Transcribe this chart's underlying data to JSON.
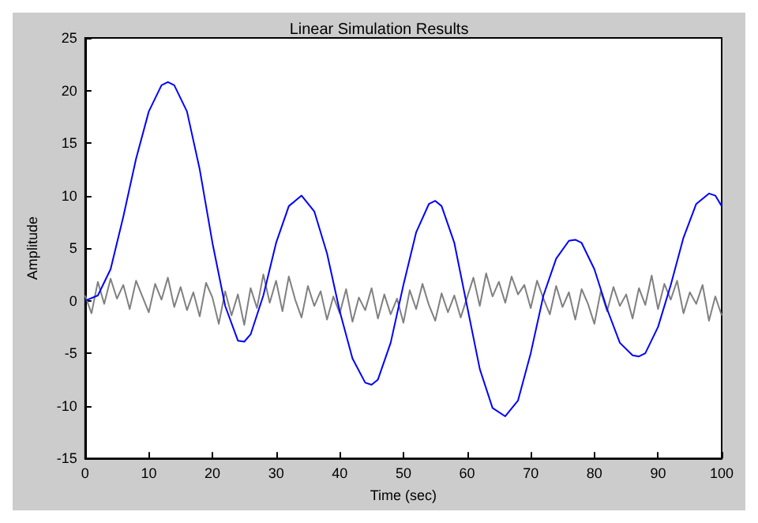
{
  "chart_data": {
    "type": "line",
    "title": "Linear Simulation Results",
    "xlabel": "Time (sec)",
    "ylabel": "Amplitude",
    "xlim": [
      0,
      100
    ],
    "xticks": [
      0,
      10,
      20,
      30,
      40,
      50,
      60,
      70,
      80,
      90,
      100
    ],
    "ylim": [
      -15,
      25
    ],
    "yticks": [
      -15,
      -10,
      -5,
      0,
      5,
      10,
      15,
      20,
      25
    ],
    "grid": false,
    "marker": "none",
    "line_style": "solid",
    "series": [
      {
        "color": "#808080",
        "x": [
          0,
          1,
          2,
          3,
          4,
          5,
          6,
          7,
          8,
          9,
          10,
          11,
          12,
          13,
          14,
          15,
          16,
          17,
          18,
          19,
          20,
          21,
          22,
          23,
          24,
          25,
          26,
          27,
          28,
          29,
          30,
          31,
          32,
          33,
          34,
          35,
          36,
          37,
          38,
          39,
          40,
          41,
          42,
          43,
          44,
          45,
          46,
          47,
          48,
          49,
          50,
          51,
          52,
          53,
          54,
          55,
          56,
          57,
          58,
          59,
          60,
          61,
          62,
          63,
          64,
          65,
          66,
          67,
          68,
          69,
          70,
          71,
          72,
          73,
          74,
          75,
          76,
          77,
          78,
          79,
          80,
          81,
          82,
          83,
          84,
          85,
          86,
          87,
          88,
          89,
          90,
          91,
          92,
          93,
          94,
          95,
          96,
          97,
          98,
          99,
          100
        ],
        "values": [
          0.5,
          -1.2,
          1.8,
          -0.3,
          2.1,
          0.2,
          1.5,
          -0.8,
          1.9,
          0.4,
          -1.1,
          1.6,
          0.1,
          2.2,
          -0.6,
          1.3,
          -0.9,
          0.8,
          -1.5,
          1.7,
          0.3,
          -2.2,
          0.9,
          -1.4,
          0.6,
          -2.3,
          1.2,
          -0.7,
          2.5,
          -0.2,
          1.9,
          -1,
          2.3,
          0.1,
          -1.6,
          1.4,
          -0.5,
          0.9,
          -1.8,
          0.4,
          -1.2,
          1.1,
          -2,
          0.3,
          -0.9,
          1.2,
          -1.7,
          0.6,
          -1.3,
          0.2,
          -2.1,
          1,
          -0.8,
          1.6,
          -0.4,
          -1.9,
          0.7,
          -1.1,
          0.5,
          -1.6,
          0.3,
          2.2,
          -0.5,
          2.6,
          0.4,
          1.8,
          -0.2,
          2.3,
          0.6,
          1.5,
          -0.7,
          1.9,
          0.2,
          -1.3,
          1.4,
          -0.6,
          0.8,
          -1.8,
          1.1,
          -0.3,
          -2.2,
          0.9,
          -1,
          1.3,
          -0.5,
          0.6,
          -1.7,
          1.2,
          -0.4,
          2.4,
          -0.8,
          1.6,
          0.1,
          1.9,
          -1.2,
          0.8,
          -0.3,
          1.5,
          -1.9,
          0.4,
          -1.4
        ]
      },
      {
        "color": "#0000ff",
        "x": [
          0,
          2,
          4,
          6,
          8,
          10,
          12,
          13,
          14,
          16,
          18,
          20,
          22,
          24,
          25,
          26,
          28,
          30,
          32,
          34,
          36,
          38,
          40,
          42,
          44,
          45,
          46,
          48,
          50,
          52,
          54,
          55,
          56,
          58,
          60,
          62,
          64,
          66,
          68,
          70,
          72,
          74,
          76,
          77,
          78,
          80,
          82,
          84,
          86,
          87,
          88,
          90,
          92,
          94,
          96,
          98,
          99,
          100
        ],
        "values": [
          0,
          0.5,
          3,
          8,
          13.5,
          18,
          20.5,
          20.8,
          20.5,
          18,
          12.5,
          5.5,
          -0.5,
          -3.8,
          -3.9,
          -3.2,
          0.5,
          5.5,
          9,
          10,
          8.5,
          4.5,
          -1,
          -5.5,
          -7.8,
          -8,
          -7.5,
          -4,
          1.5,
          6.5,
          9.2,
          9.5,
          9,
          5.5,
          -0.5,
          -6.5,
          -10.2,
          -11,
          -9.5,
          -5,
          0.5,
          4,
          5.7,
          5.8,
          5.5,
          3,
          -0.8,
          -4,
          -5.2,
          -5.3,
          -5,
          -2.5,
          1.5,
          6,
          9.2,
          10.2,
          10,
          9
        ]
      }
    ]
  }
}
